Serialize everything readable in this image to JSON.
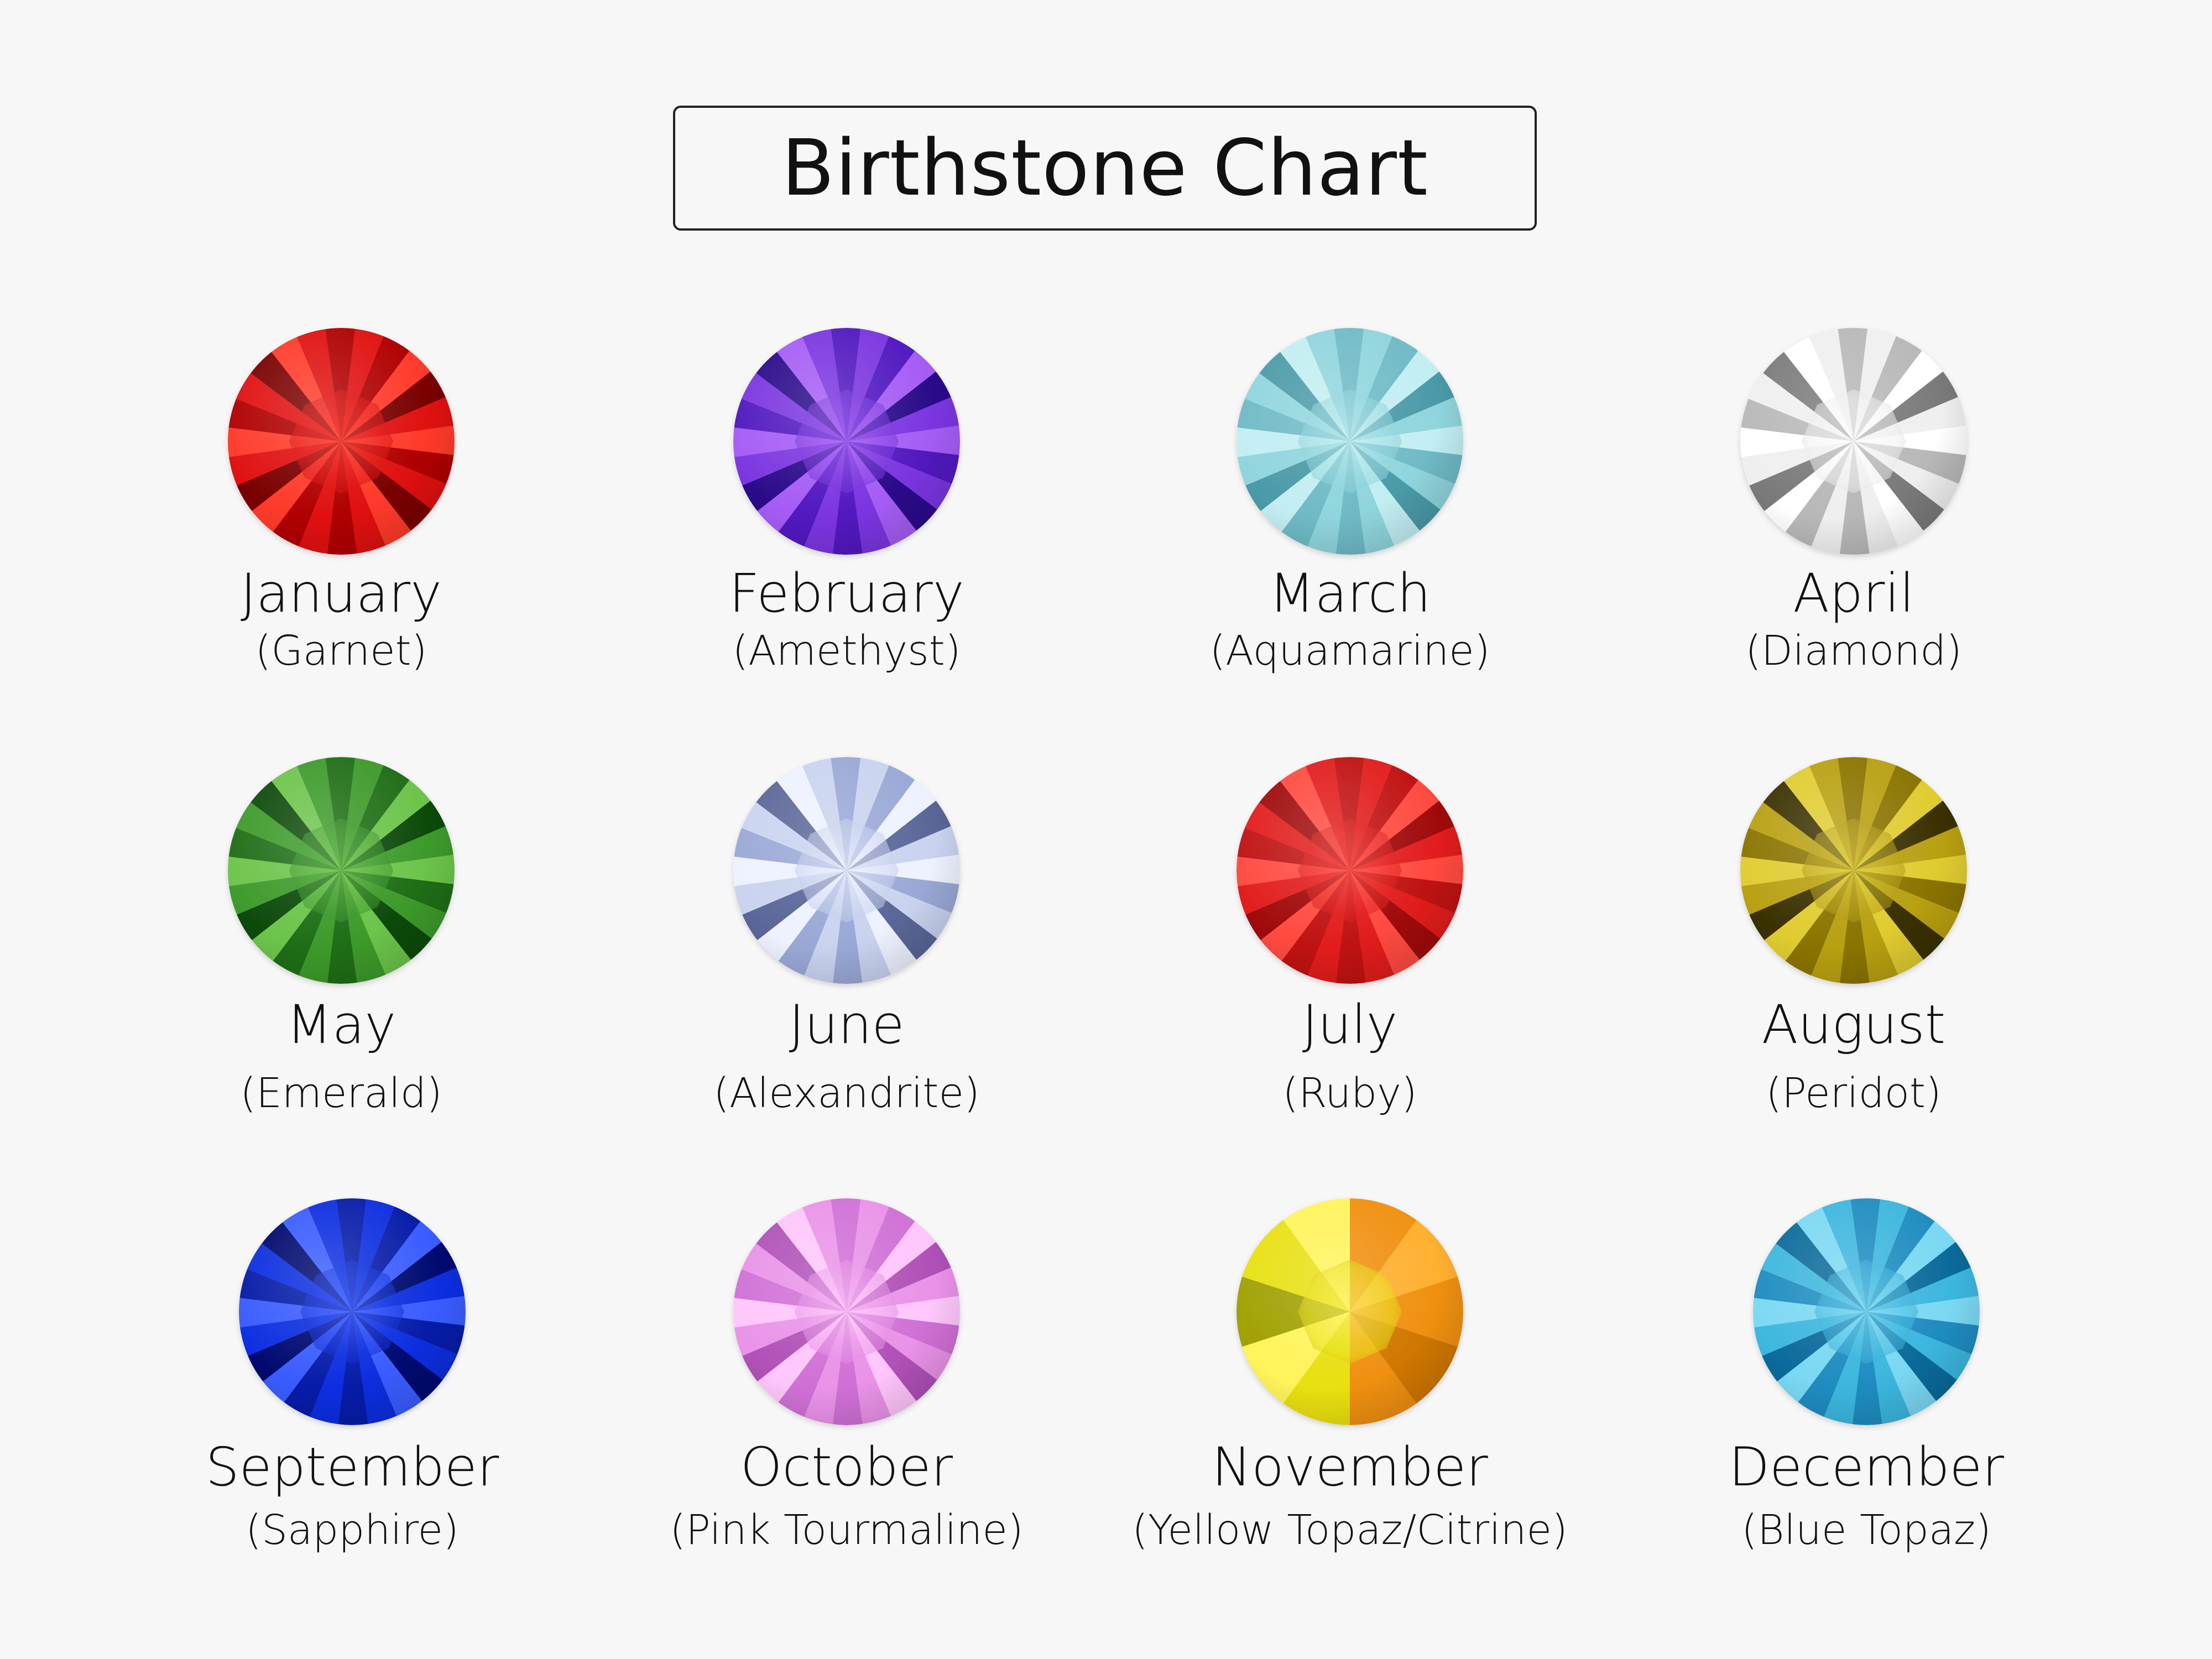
{
  "title": "Birthstone Chart",
  "stones": [
    {
      "month": "January",
      "stone": "(Garnet)",
      "colors": [
        "#e01010",
        "#7a0000",
        "#ff3a2a",
        "#b00000"
      ]
    },
    {
      "month": "February",
      "stone": "(Amethyst)",
      "colors": [
        "#7b35e0",
        "#2a0a8a",
        "#a55cf5",
        "#5118c0"
      ]
    },
    {
      "month": "March",
      "stone": "(Aquamarine)",
      "colors": [
        "#8fd5dd",
        "#4a9aa8",
        "#c2eef2",
        "#6fbac6"
      ]
    },
    {
      "month": "April",
      "stone": "(Diamond)",
      "colors": [
        "#efefef",
        "#7a7a7a",
        "#ffffff",
        "#b8b8b8"
      ]
    },
    {
      "month": "May",
      "stone": "(Emerald)",
      "colors": [
        "#3d9a2a",
        "#0c4a0a",
        "#6cc44a",
        "#1f6e16"
      ]
    },
    {
      "month": "June",
      "stone": "(Alexandrite)",
      "colors": [
        "#c9d3ef",
        "#5a6698",
        "#eef2ff",
        "#9aa8d6"
      ]
    },
    {
      "month": "July",
      "stone": "(Ruby)",
      "colors": [
        "#e21c1c",
        "#a00a0a",
        "#ff4a40",
        "#c01212"
      ]
    },
    {
      "month": "August",
      "stone": "(Peridot)",
      "colors": [
        "#b8a010",
        "#3a3000",
        "#e0cc30",
        "#8a7400"
      ]
    },
    {
      "month": "September",
      "stone": "(Sapphire)",
      "colors": [
        "#0c2ee0",
        "#000a70",
        "#3a5cff",
        "#061ca8"
      ]
    },
    {
      "month": "October",
      "stone": "(Pink Tourmaline)",
      "colors": [
        "#ea92e8",
        "#b050b8",
        "#ffc6fb",
        "#d070d6"
      ]
    },
    {
      "month": "November",
      "stone": "(Yellow Topaz/Citrine)",
      "colors": [
        "#e8e010",
        "#f09010",
        "#fff45a",
        "#c86c00"
      ]
    },
    {
      "month": "December",
      "stone": "(Blue Topaz)",
      "colors": [
        "#3cb6de",
        "#0a6a9a",
        "#7ad8f2",
        "#1e8cc0"
      ]
    }
  ]
}
